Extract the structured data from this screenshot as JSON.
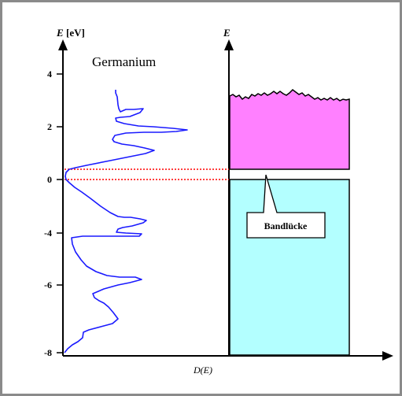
{
  "title": "Germanium",
  "left_axis": {
    "label_symbol": "E",
    "label_unit": "[eV]",
    "ticks": [
      "4",
      "2",
      "0",
      "-4",
      "-6",
      "-8"
    ]
  },
  "right_axis": {
    "label_symbol": "E"
  },
  "x_axis": {
    "label": "D(E)"
  },
  "band_gap_label": "Bandlücke",
  "colors": {
    "curve": "#1a1aff",
    "conduction_band": "#ff80ff",
    "valence_band": "#b3ffff",
    "gap_lines": "#ff0000"
  },
  "chart_data": {
    "type": "line",
    "title": "Germanium",
    "ylabel": "E [eV]",
    "xlabel": "D(E)",
    "yticks": [
      4,
      2,
      0,
      -4,
      -6,
      -8
    ],
    "series": [
      {
        "values": []
      }
    ]
  }
}
